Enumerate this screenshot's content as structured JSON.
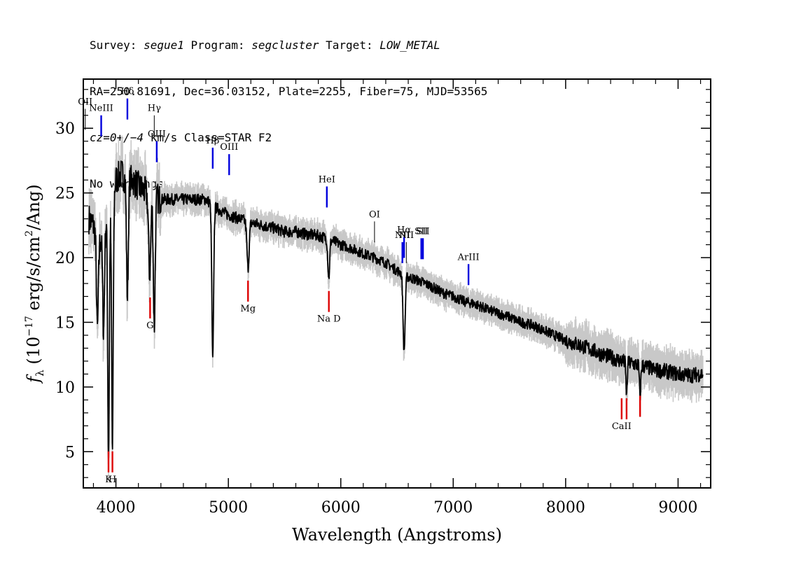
{
  "header": {
    "line1": {
      "survey_label": "Survey: ",
      "survey_value": "segue1",
      "program_label": " Program: ",
      "program_value": "segcluster",
      "target_label": " Target: ",
      "target_value": "LOW_METAL"
    },
    "line2": "RA=250.81691, Dec=36.03152, Plate=2255, Fiber=75, MJD=53565",
    "line3": {
      "cz_value": "cz=0+/−4",
      "cz_rest": " km/s Class=STAR F2"
    },
    "line4": "No warnings."
  },
  "chart_data": {
    "type": "line",
    "xlabel": "Wavelength (Angstroms)",
    "ylabel_main": "f",
    "ylabel_sub": "λ",
    "ylabel_units_a": " (10",
    "ylabel_exp": "−17",
    "ylabel_units_b": " erg/s/cm",
    "ylabel_exp2": "2",
    "ylabel_units_c": "/Ang)",
    "xlim": [
      3710,
      9290
    ],
    "ylim": [
      2.2,
      33.8
    ],
    "xticks": [
      4000,
      5000,
      6000,
      7000,
      8000,
      9000
    ],
    "yticks": [
      5,
      10,
      15,
      20,
      25,
      30
    ],
    "grid": false,
    "colors": {
      "flux": "#000000",
      "error_band": "#c8c8c8",
      "emission_marker": "#0000dd",
      "absorption_marker": "#dd0000",
      "thin_marker": "#000000"
    },
    "continuum": [
      [
        3760,
        23.0
      ],
      [
        3800,
        22.5
      ],
      [
        3850,
        21.0
      ],
      [
        3900,
        22.5
      ],
      [
        3960,
        24.0
      ],
      [
        4000,
        26.0
      ],
      [
        4050,
        26.5
      ],
      [
        4100,
        26.0
      ],
      [
        4150,
        26.0
      ],
      [
        4200,
        25.5
      ],
      [
        4300,
        24.8
      ],
      [
        4400,
        24.5
      ],
      [
        4500,
        24.5
      ],
      [
        4600,
        24.5
      ],
      [
        4700,
        24.5
      ],
      [
        4800,
        24.5
      ],
      [
        4900,
        23.8
      ],
      [
        5000,
        23.3
      ],
      [
        5100,
        23.0
      ],
      [
        5200,
        22.7
      ],
      [
        5300,
        22.5
      ],
      [
        5400,
        22.3
      ],
      [
        5500,
        22.0
      ],
      [
        5600,
        22.0
      ],
      [
        5700,
        21.8
      ],
      [
        5800,
        21.7
      ],
      [
        5900,
        21.4
      ],
      [
        6000,
        21.0
      ],
      [
        6100,
        20.7
      ],
      [
        6200,
        20.3
      ],
      [
        6300,
        20.0
      ],
      [
        6400,
        19.6
      ],
      [
        6500,
        19.0
      ],
      [
        6600,
        18.5
      ],
      [
        6700,
        18.2
      ],
      [
        6800,
        17.8
      ],
      [
        6900,
        17.3
      ],
      [
        7000,
        17.0
      ],
      [
        7100,
        16.6
      ],
      [
        7200,
        16.4
      ],
      [
        7300,
        16.0
      ],
      [
        7400,
        15.7
      ],
      [
        7500,
        15.4
      ],
      [
        7600,
        15.0
      ],
      [
        7700,
        14.8
      ],
      [
        7800,
        14.4
      ],
      [
        7900,
        14.0
      ],
      [
        8000,
        13.6
      ],
      [
        8100,
        13.3
      ],
      [
        8200,
        13.0
      ],
      [
        8300,
        12.6
      ],
      [
        8400,
        12.3
      ],
      [
        8500,
        12.0
      ],
      [
        8600,
        11.8
      ],
      [
        8700,
        11.6
      ],
      [
        8800,
        11.3
      ],
      [
        8900,
        11.2
      ],
      [
        9000,
        11.0
      ],
      [
        9100,
        10.9
      ],
      [
        9200,
        11.0
      ]
    ],
    "absorption_features": [
      {
        "x": 3835,
        "depth": 7.0,
        "width": 8
      },
      {
        "x": 3890,
        "depth": 8.0,
        "width": 8
      },
      {
        "x": 3934,
        "depth": 19.0,
        "width": 7
      },
      {
        "x": 3969,
        "depth": 19.5,
        "width": 7
      },
      {
        "x": 4102,
        "depth": 9.0,
        "width": 8
      },
      {
        "x": 4300,
        "depth": 6.0,
        "width": 10
      },
      {
        "x": 4341,
        "depth": 10.0,
        "width": 8
      },
      {
        "x": 4861,
        "depth": 12.0,
        "width": 8
      },
      {
        "x": 5175,
        "depth": 3.5,
        "width": 10
      },
      {
        "x": 5893,
        "depth": 3.0,
        "width": 8
      },
      {
        "x": 6563,
        "depth": 6.0,
        "width": 9
      },
      {
        "x": 8542,
        "depth": 2.5,
        "width": 6
      },
      {
        "x": 8662,
        "depth": 2.5,
        "width": 6
      }
    ],
    "line_markers": [
      {
        "label": "OII",
        "x": 3727,
        "y": 31.5,
        "kind": "thin",
        "label_side": "above"
      },
      {
        "label": "NeIII",
        "x": 3869,
        "y": 31.0,
        "kind": "emission",
        "label_side": "above"
      },
      {
        "label": "Hδ",
        "x": 4102,
        "y": 32.3,
        "kind": "emission",
        "label_side": "above"
      },
      {
        "label": "Hγ",
        "x": 4341,
        "y": 31.0,
        "kind": "thin",
        "label_side": "above"
      },
      {
        "label": "OIII",
        "x": 4363,
        "y": 29.0,
        "kind": "emission",
        "label_side": "above"
      },
      {
        "label": "Hβ",
        "x": 4861,
        "y": 28.5,
        "kind": "emission",
        "label_side": "above"
      },
      {
        "label": "OIII",
        "x": 5007,
        "y": 28.0,
        "kind": "emission",
        "label_side": "above"
      },
      {
        "label": "HeI",
        "x": 5876,
        "y": 25.5,
        "kind": "emission",
        "label_side": "above"
      },
      {
        "label": "OI",
        "x": 6300,
        "y": 22.8,
        "kind": "thin",
        "label_side": "above"
      },
      {
        "label": "NII",
        "x": 6548,
        "y": 21.2,
        "kind": "emission",
        "label_side": "above"
      },
      {
        "label": "Hα",
        "x": 6563,
        "y": 21.6,
        "kind": "emission",
        "label_side": "above"
      },
      {
        "label": "NII",
        "x": 6583,
        "y": 21.2,
        "kind": "thin",
        "label_side": "above"
      },
      {
        "label": "SII",
        "x": 6716,
        "y": 21.5,
        "kind": "emission",
        "label_side": "above"
      },
      {
        "label": "SII",
        "x": 6731,
        "y": 21.5,
        "kind": "emission",
        "label_side": "above"
      },
      {
        "label": "ArIII",
        "x": 7136,
        "y": 19.5,
        "kind": "emission",
        "label_side": "above"
      },
      {
        "label": "K",
        "x": 3934,
        "y": 3.4,
        "kind": "absorption",
        "label_side": "below"
      },
      {
        "label": "H",
        "x": 3969,
        "y": 3.4,
        "kind": "absorption",
        "label_side": "below"
      },
      {
        "label": "G",
        "x": 4304,
        "y": 15.3,
        "kind": "absorption",
        "label_side": "below"
      },
      {
        "label": "Mg",
        "x": 5175,
        "y": 16.6,
        "kind": "absorption",
        "label_side": "below"
      },
      {
        "label": "Na D",
        "x": 5894,
        "y": 15.8,
        "kind": "absorption",
        "label_side": "below"
      },
      {
        "label": "CaII",
        "x": 8498,
        "y": 7.5,
        "kind": "absorption",
        "label_side": "below"
      },
      {
        "label": "",
        "x": 8542,
        "y": 7.5,
        "kind": "absorption",
        "label_side": "none"
      },
      {
        "label": "",
        "x": 8662,
        "y": 7.7,
        "kind": "absorption",
        "label_side": "none"
      }
    ]
  }
}
